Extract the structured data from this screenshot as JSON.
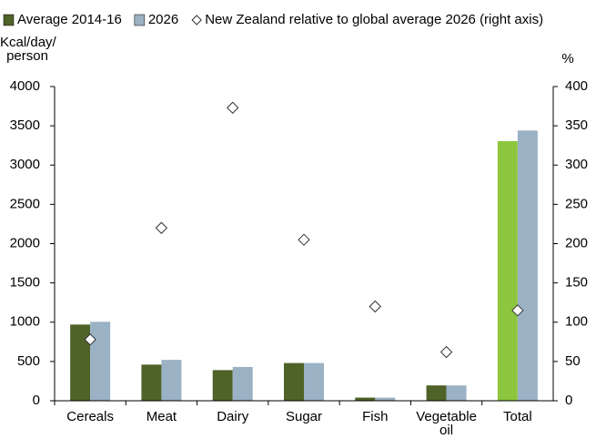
{
  "chart_data": {
    "type": "bar",
    "y_label": "Kcal/day/ person",
    "y2_label": "%",
    "categories": [
      "Cereals",
      "Meat",
      "Dairy",
      "Sugar",
      "Fish",
      "Vegetable oil",
      "Total"
    ],
    "series": [
      {
        "name": "Average 2014-16",
        "color": "#4f6228",
        "colors": [
          "#4f6228",
          "#4f6228",
          "#4f6228",
          "#4f6228",
          "#4f6228",
          "#4f6228",
          "#8dc63f"
        ],
        "values": [
          970,
          460,
          390,
          480,
          40,
          195,
          3305
        ]
      },
      {
        "name": "2026",
        "color": "#9bb1c4",
        "colors": [
          "#9bb1c4",
          "#9bb1c4",
          "#9bb1c4",
          "#9bb1c4",
          "#9bb1c4",
          "#9bb1c4",
          "#9bb1c4"
        ],
        "values": [
          1005,
          520,
          430,
          480,
          40,
          195,
          3440
        ]
      },
      {
        "name": "New Zealand relative to global average 2026 (right axis)",
        "type": "scatter",
        "axis": "y2",
        "color": "#333333",
        "values": [
          78,
          220,
          373,
          205,
          120,
          62,
          115
        ]
      }
    ],
    "ylim": [
      0,
      4000
    ],
    "yticks": [
      0,
      500,
      1000,
      1500,
      2000,
      2500,
      3000,
      3500,
      4000
    ],
    "y2lim": [
      0,
      400
    ],
    "y2ticks": [
      0,
      50,
      100,
      150,
      200,
      250,
      300,
      350,
      400
    ]
  }
}
